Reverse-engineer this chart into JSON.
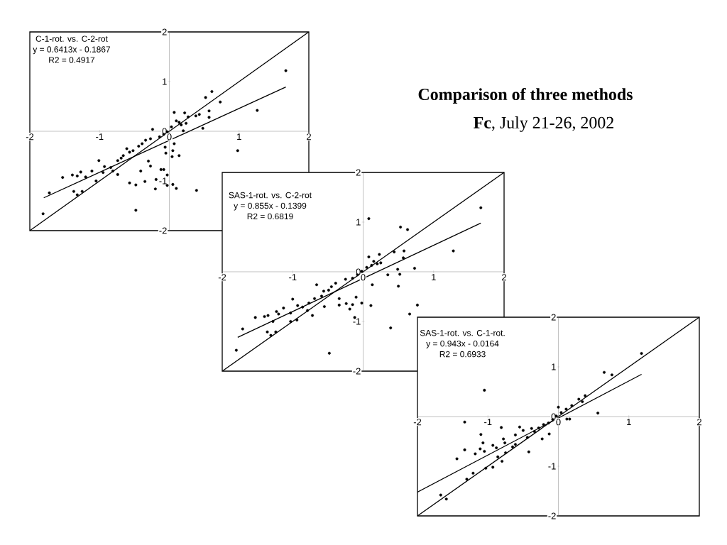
{
  "chart_data": [
    {
      "type": "scatter",
      "annotations": [
        "C-1-rot. vs. C-2-rot",
        "y = 0.6413x - 0.1867",
        "R2 = 0.4917"
      ],
      "xlim": [
        -2,
        2
      ],
      "ylim": [
        -2,
        2
      ],
      "xticks": [
        -2,
        -1,
        0,
        1,
        2
      ],
      "yticks": [
        -2,
        -1,
        0,
        1,
        2
      ],
      "series": [
        {
          "type": "scatter",
          "marker": "circle",
          "color": "#000000",
          "x": [
            1.67,
            0.61,
            0.52,
            0.73,
            1.26,
            0.57,
            0.57,
            0.38,
            0.43,
            0.48,
            0.07,
            0.22,
            0.27,
            0.14,
            0.17,
            0.1,
            0.24,
            0.2,
            0.03,
            -0.03,
            -0.08,
            -0.14,
            0.07,
            0.05,
            0.14,
            0.04,
            -0.05,
            -0.06,
            -0.24,
            -0.27,
            -0.34,
            -0.39,
            -0.44,
            -0.52,
            -0.57,
            -0.61,
            -0.66,
            -0.69,
            -0.74,
            -0.84,
            -0.93,
            -1.01,
            -0.95,
            -1.05,
            -1.11,
            -1.2,
            -1.27,
            -1.32,
            -1.39,
            -1.37,
            -1.32,
            -1.25,
            -1.53,
            -1.72,
            -1.81,
            -0.74,
            -0.81,
            -0.57,
            -0.48,
            -0.48,
            -0.41,
            -0.35,
            -0.3,
            -0.27,
            -0.2,
            -0.19,
            -0.12,
            -0.08,
            -0.03,
            -0.03,
            0.05,
            0.1,
            0.39,
            0.98
          ],
          "values": [
            1.22,
            0.8,
            0.68,
            0.59,
            0.42,
            0.41,
            0.28,
            0.31,
            0.34,
            0.06,
            0.38,
            0.37,
            0.29,
            0.18,
            0.13,
            0.21,
            0.16,
            0.01,
            0.09,
            -0.01,
            -0.06,
            -0.11,
            -0.25,
            -0.39,
            -0.49,
            -0.51,
            -0.44,
            -0.32,
            0.04,
            -0.15,
            -0.18,
            -0.25,
            -0.3,
            -0.39,
            -0.42,
            -0.35,
            -0.49,
            -0.54,
            -0.59,
            -0.73,
            -0.71,
            -0.59,
            -0.83,
            -1.0,
            -0.8,
            -0.92,
            -0.82,
            -0.9,
            -0.88,
            -1.21,
            -1.28,
            -1.21,
            -0.93,
            -1.24,
            -1.66,
            -0.87,
            -0.8,
            -1.04,
            -1.08,
            -1.59,
            -0.8,
            -1.01,
            -0.6,
            -0.7,
            -1.16,
            -0.97,
            -0.77,
            -0.77,
            -0.88,
            -1.09,
            -1.07,
            -1.15,
            -1.19,
            -0.39
          ]
        },
        {
          "type": "line",
          "color": "#000000",
          "x": [
            -1.8,
            1.67
          ],
          "values": [
            -1.34,
            0.89
          ]
        },
        {
          "type": "line",
          "color": "#000000",
          "x": [
            -2,
            2
          ],
          "values": [
            -2,
            2
          ]
        }
      ]
    },
    {
      "type": "scatter",
      "annotations": [
        "SAS-1-rot. vs. C-2-rot",
        "y = 0.855x - 0.1399",
        "R2 = 0.6819"
      ],
      "xlim": [
        -2,
        2
      ],
      "ylim": [
        -2,
        2
      ],
      "xticks": [
        -2,
        -1,
        0,
        1,
        2
      ],
      "yticks": [
        -2,
        -1,
        0,
        1,
        2
      ],
      "series": [
        {
          "type": "scatter",
          "marker": "circle",
          "color": "#000000",
          "x": [
            1.67,
            1.28,
            0.53,
            0.63,
            0.08,
            0.58,
            0.57,
            0.73,
            0.49,
            0.52,
            0.35,
            0.5,
            0.44,
            0.23,
            0.08,
            0.15,
            0.2,
            0.25,
            0.12,
            0.05,
            -0.02,
            -0.08,
            -0.15,
            -0.25,
            0.13,
            0.11,
            -0.02,
            -0.1,
            -0.15,
            -0.19,
            -0.24,
            -0.34,
            -0.34,
            -0.12,
            0.39,
            -0.48,
            0.77,
            0.66,
            -0.39,
            -0.45,
            -0.49,
            -0.56,
            -0.59,
            -0.66,
            -0.69,
            -0.77,
            -0.86,
            -0.93,
            -1.0,
            -1.03,
            -1.03,
            -0.94,
            -1.13,
            -1.2,
            -1.23,
            -1.28,
            -1.35,
            -1.4,
            -1.36,
            -1.31,
            -1.24,
            -1.53,
            -1.71,
            -1.8,
            -0.72,
            -0.79,
            -0.55
          ],
          "values": [
            1.29,
            0.42,
            0.9,
            0.85,
            1.07,
            0.42,
            0.28,
            0.07,
            0.05,
            -0.05,
            -0.06,
            -0.29,
            0.4,
            0.35,
            0.3,
            0.21,
            0.16,
            0.18,
            0.13,
            0.09,
            0.01,
            -0.06,
            -0.13,
            -0.15,
            -0.26,
            -0.68,
            -0.63,
            -0.51,
            -0.66,
            -0.75,
            -0.64,
            -0.67,
            -0.54,
            -0.92,
            -1.13,
            -1.64,
            -0.67,
            -0.85,
            -0.23,
            -0.3,
            -0.37,
            -0.39,
            -0.49,
            -0.26,
            -0.54,
            -0.63,
            -0.71,
            -0.68,
            -0.55,
            -0.83,
            -1.0,
            -0.97,
            -0.73,
            -0.85,
            -0.8,
            -1.0,
            -0.88,
            -0.9,
            -1.21,
            -1.28,
            -1.21,
            -0.92,
            -1.15,
            -1.58,
            -0.88,
            -0.78,
            -0.7
          ]
        },
        {
          "type": "line",
          "color": "#000000",
          "x": [
            -1.78,
            1.67
          ],
          "values": [
            -1.32,
            0.98
          ]
        },
        {
          "type": "line",
          "color": "#000000",
          "x": [
            -2,
            2
          ],
          "values": [
            -2,
            2
          ]
        }
      ]
    },
    {
      "type": "scatter",
      "annotations": [
        "SAS-1-rot. vs. C-1-rot.",
        "y = 0.943x - 0.0164",
        "R2 = 0.6933"
      ],
      "xlim": [
        -2,
        2
      ],
      "ylim": [
        -2,
        2
      ],
      "xticks": [
        -2,
        -1,
        0,
        1,
        2
      ],
      "yticks": [
        -2,
        -1,
        0,
        1,
        2
      ],
      "series": [
        {
          "type": "scatter",
          "marker": "circle",
          "color": "#000000",
          "x": [
            1.18,
            0.65,
            0.76,
            0.56,
            0.38,
            0.29,
            0.34,
            0.19,
            0.11,
            0.0,
            0.04,
            -0.03,
            -0.08,
            -0.14,
            0.12,
            0.16,
            -1.05,
            -1.33,
            -0.81,
            -1.1,
            -1.07,
            -1.33,
            -1.44,
            -1.11,
            -1.05,
            -1.18,
            -0.93,
            -0.88,
            -0.78,
            -0.76,
            -0.55,
            -0.5,
            -0.38,
            -0.23,
            -0.13,
            -0.42,
            -0.61,
            -0.65,
            -0.8,
            -0.93,
            -1.03,
            -1.21,
            -1.3,
            -1.67,
            -1.59,
            -0.86,
            -0.75,
            -0.61,
            -0.44,
            -0.34,
            -0.28,
            -0.21
          ],
          "values": [
            1.27,
            0.89,
            0.84,
            0.07,
            0.42,
            0.35,
            0.3,
            0.22,
            0.15,
            0.19,
            0.08,
            0.01,
            -0.06,
            -0.13,
            -0.05,
            -0.05,
            0.53,
            -0.11,
            -0.22,
            -0.36,
            -0.53,
            -0.67,
            -0.85,
            -0.65,
            -0.7,
            -0.75,
            -0.58,
            -0.63,
            -0.45,
            -0.53,
            -0.21,
            -0.28,
            -0.24,
            -0.45,
            -0.35,
            -0.71,
            -0.37,
            -0.61,
            -0.9,
            -1.02,
            -1.04,
            -1.14,
            -1.26,
            -1.58,
            -1.66,
            -0.81,
            -0.73,
            -0.56,
            -0.42,
            -0.3,
            -0.23,
            -0.16
          ]
        },
        {
          "type": "line",
          "color": "#000000",
          "x": [
            -2,
            1.18
          ],
          "values": [
            -1.52,
            0.85
          ]
        },
        {
          "type": "line",
          "color": "#000000",
          "x": [
            -2,
            2
          ],
          "values": [
            -2,
            2
          ]
        }
      ]
    },
    {
      "type": "other",
      "title": "Comparison of three methods",
      "subtitle": "**Fc**, July 21-26, 2002"
    }
  ]
}
